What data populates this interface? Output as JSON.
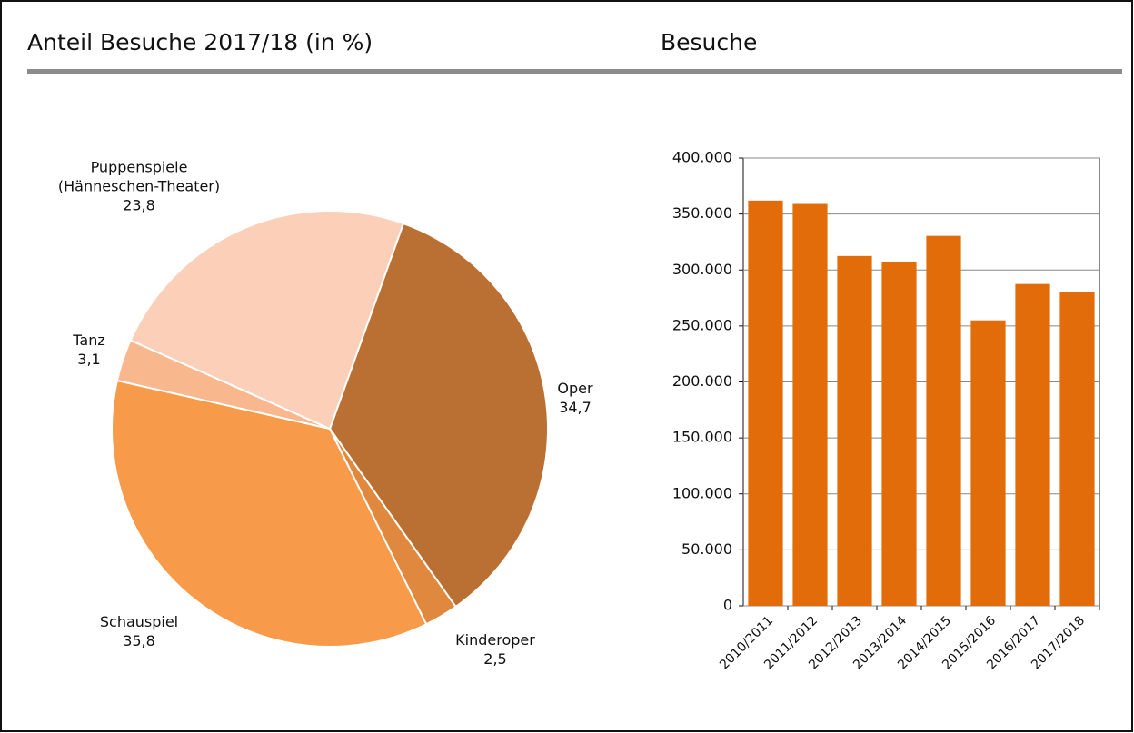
{
  "chart_data": [
    {
      "type": "pie",
      "title": "Anteil Besuche 2017/18 (in %)",
      "categories": [
        "Oper",
        "Kinderoper",
        "Schauspiel",
        "Tanz",
        "Puppenspiele (Hänneschen-Theater)"
      ],
      "values": [
        34.7,
        2.5,
        35.8,
        3.1,
        23.8
      ],
      "value_labels": [
        "34,7",
        "2,5",
        "35,8",
        "3,1",
        "23,8"
      ],
      "colors": [
        "#bb7033",
        "#e0883e",
        "#f79b4b",
        "#f9b78e",
        "#fbcfb8"
      ]
    },
    {
      "type": "bar",
      "title": "Besuche",
      "categories": [
        "2010/2011",
        "2011/2012",
        "2012/2013",
        "2013/2014",
        "2014/2015",
        "2015/2016",
        "2016/2017",
        "2017/2018"
      ],
      "values": [
        362000,
        359000,
        312500,
        307000,
        330500,
        255000,
        287500,
        280000
      ],
      "color": "#e36c0a",
      "ylim": [
        0,
        400000
      ],
      "yticks": [
        0,
        {
          "value": 50000,
          "label": "50.000"
        },
        {
          "value": 100000,
          "label": "100.000"
        },
        {
          "value": 150000,
          "label": "150.000"
        },
        {
          "value": 200000,
          "label": "200.000"
        },
        {
          "value": 250000,
          "label": "250.000"
        },
        {
          "value": 300000,
          "label": "300.000"
        },
        {
          "value": 350000,
          "label": "350.000"
        },
        {
          "value": 400000,
          "label": "400.000"
        }
      ],
      "grid": true
    }
  ]
}
